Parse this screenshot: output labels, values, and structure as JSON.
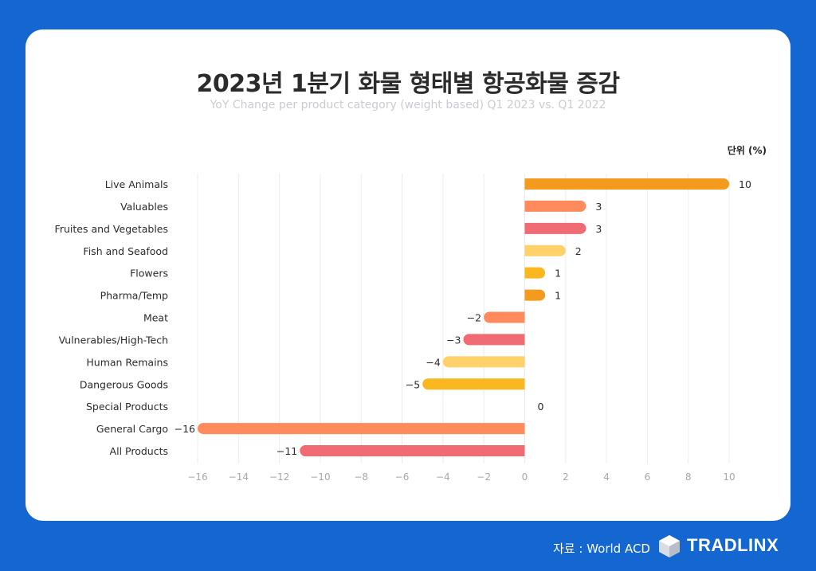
{
  "title": "2023년 1분기 화물 형태별 항공화물 증감",
  "subtitle": "YoY Change per product category (weight based) Q1 2023 vs. Q1 2022",
  "unit": "단위 (%)",
  "footer": {
    "source": "자료 : World ACD",
    "brand": "TRADLINX"
  },
  "chart_data": {
    "type": "bar",
    "orientation": "horizontal",
    "categories": [
      "Live Animals",
      "Valuables",
      "Fruites and Vegetables",
      "Fish and Seafood",
      "Flowers",
      "Pharma/Temp",
      "Meat",
      "Vulnerables/High-Tech",
      "Human Remains",
      "Dangerous Goods",
      "Special Products",
      "General Cargo",
      "All Products"
    ],
    "values": [
      10,
      3,
      3,
      2,
      1,
      1,
      -2,
      -3,
      -4,
      -5,
      0,
      -16,
      -11
    ],
    "colors": [
      "#f39a1f",
      "#ff8a5c",
      "#f06b73",
      "#ffd16b",
      "#fbb71f",
      "#f39a1f",
      "#ff8a5c",
      "#f06b73",
      "#ffd16b",
      "#fbb71f",
      "#f39a1f",
      "#ff8a5c",
      "#f06b73"
    ],
    "xlim": [
      -16,
      10
    ],
    "xticks": [
      -16,
      -14,
      -12,
      -10,
      -8,
      -6,
      -4,
      -2,
      0,
      2,
      4,
      6,
      8,
      10
    ],
    "grid": true
  }
}
